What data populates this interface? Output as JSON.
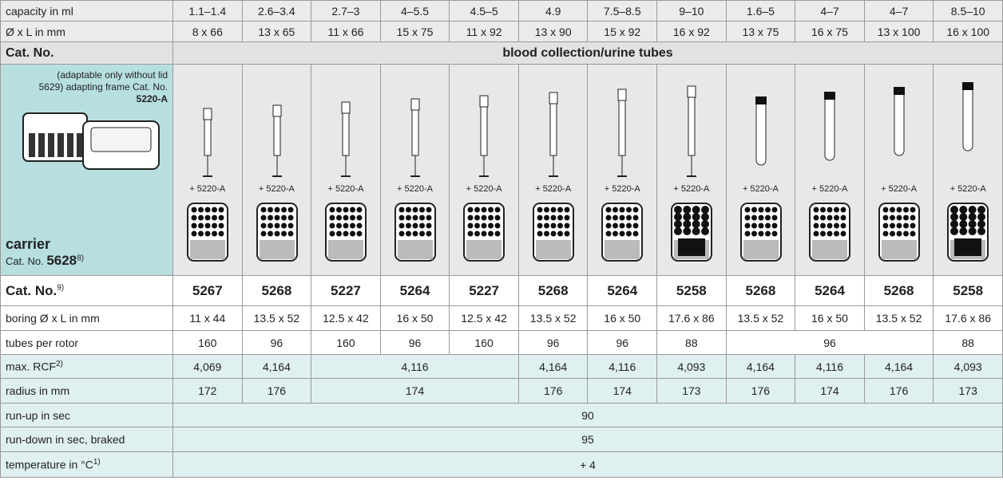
{
  "table": {
    "header_rows": [
      {
        "label": "capacity in ml",
        "cells": [
          "1.1–1.4",
          "2.6–3.4",
          "2.7–3",
          "4–5.5",
          "4.5–5",
          "4.9",
          "7.5–8.5",
          "9–10",
          "1.6–5",
          "4–7",
          "4–7",
          "8.5–10"
        ]
      },
      {
        "label": "Ø x L in mm",
        "cells": [
          "8 x 66",
          "13 x 65",
          "11 x 66",
          "15 x 75",
          "11 x 92",
          "13 x 90",
          "15 x 92",
          "16 x 92",
          "13 x 75",
          "16 x 75",
          "13 x 100",
          "16 x 100"
        ]
      }
    ],
    "cat_no_label": "Cat. No.",
    "group_title": "blood collection/urine tubes",
    "adapter": {
      "note": "(adaptable only without lid 5629) adapting frame Cat. No.",
      "cat": "5220-A"
    },
    "carrier": {
      "label": "carrier",
      "cat_prefix": "Cat. No.",
      "cat": "5628",
      "footnote": "8)"
    },
    "adapter_labels": [
      "+ 5220-A",
      "+ 5220-A",
      "+ 5220-A",
      "+ 5220-A",
      "+ 5220-A",
      "+ 5220-A",
      "+ 5220-A",
      "+ 5220-A",
      "+ 5220-A",
      "+ 5220-A",
      "+ 5220-A",
      "+ 5220-A"
    ],
    "rows": [
      {
        "label": "Cat. No.",
        "footnote": "9)",
        "cells": [
          "5267",
          "5268",
          "5227",
          "5264",
          "5227",
          "5268",
          "5264",
          "5258",
          "5268",
          "5264",
          "5268",
          "5258"
        ]
      },
      {
        "label": "boring Ø x L in mm",
        "cells": [
          "11 x 44",
          "13.5 x 52",
          "12.5 x 42",
          "16 x 50",
          "12.5 x 42",
          "13.5 x 52",
          "16 x 50",
          "17.6 x 86",
          "13.5 x 52",
          "16 x 50",
          "13.5 x 52",
          "17.6 x 86"
        ]
      },
      {
        "label": "tubes per rotor",
        "cells": [
          "160",
          "96",
          "160",
          "96",
          "160",
          "96",
          "96",
          "88",
          "96",
          "88"
        ]
      },
      {
        "label": "max. RCF",
        "footnote": "2)",
        "cells": [
          "4,069",
          "4,164",
          "4,116",
          "4,164",
          "4,116",
          "4,093",
          "4,164",
          "4,116",
          "4,164",
          "4,093"
        ]
      },
      {
        "label": "radius in mm",
        "cells": [
          "172",
          "176",
          "174",
          "176",
          "174",
          "173",
          "176",
          "174",
          "176",
          "173"
        ]
      },
      {
        "label": "run-up in sec",
        "cells": [
          "90"
        ]
      },
      {
        "label": "run-down in sec, braked",
        "cells": [
          "95"
        ]
      },
      {
        "label": "temperature in °C",
        "footnote": "1)",
        "cells": [
          "+ 4"
        ]
      }
    ]
  }
}
